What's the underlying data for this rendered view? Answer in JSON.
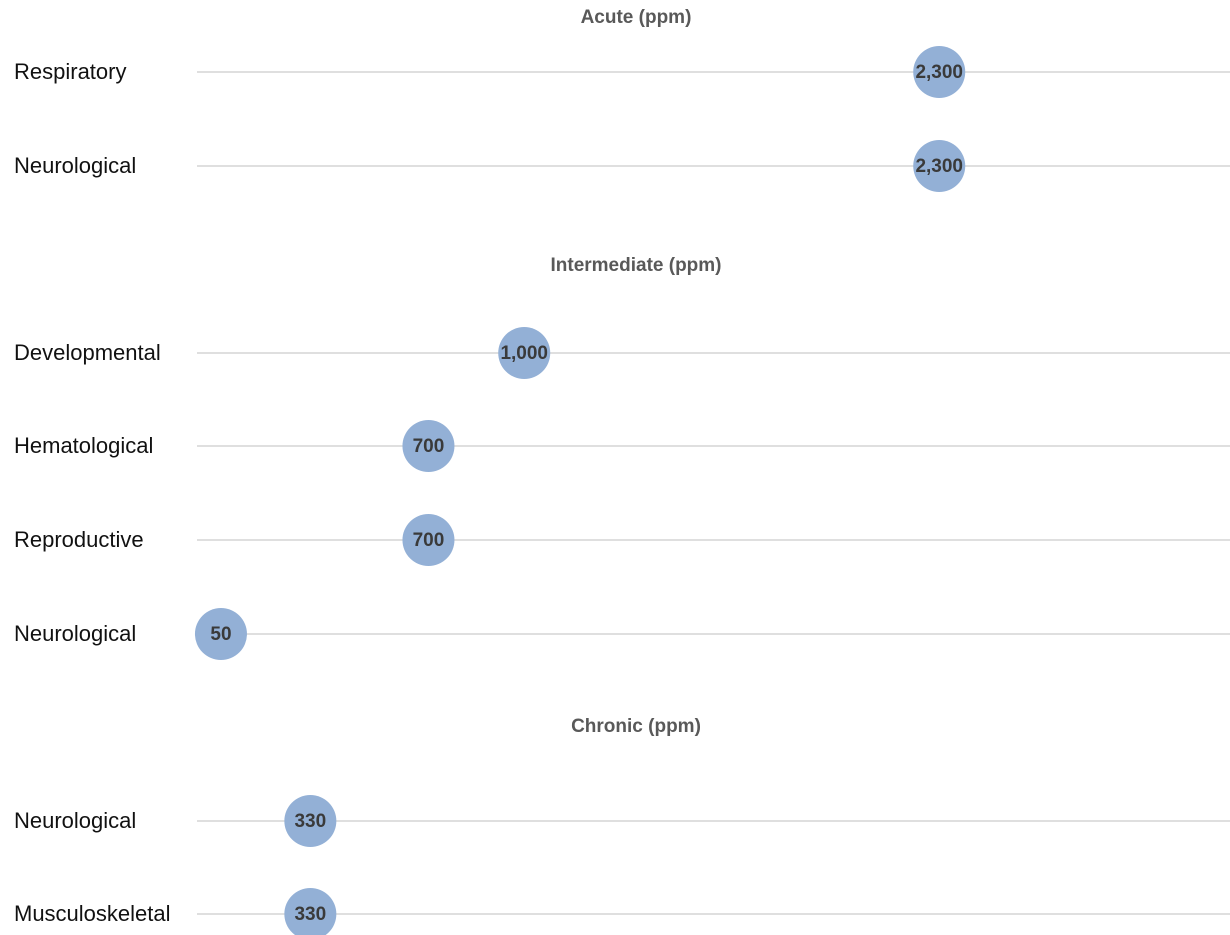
{
  "chart_data": {
    "type": "scatter",
    "x_min": 0,
    "x_max": 2600,
    "colors": {
      "marker": "#93b0d6",
      "grid": "#bfbfbf",
      "section_title": "#595959",
      "label": "#111111"
    },
    "sections": [
      {
        "title": "Acute (ppm)",
        "rows": [
          {
            "label": "Respiratory",
            "value": 2300,
            "value_label": "2,300"
          },
          {
            "label": "Neurological",
            "value": 2300,
            "value_label": "2,300"
          }
        ]
      },
      {
        "title": "Intermediate (ppm)",
        "rows": [
          {
            "label": "Developmental",
            "value": 1000,
            "value_label": "1,000"
          },
          {
            "label": "Hematological",
            "value": 700,
            "value_label": "700"
          },
          {
            "label": "Reproductive",
            "value": 700,
            "value_label": "700"
          },
          {
            "label": "Neurological",
            "value": 50,
            "value_label": "50"
          }
        ]
      },
      {
        "title": "Chronic (ppm)",
        "rows": [
          {
            "label": "Neurological",
            "value": 330,
            "value_label": "330"
          },
          {
            "label": "Musculoskeletal",
            "value": 330,
            "value_label": "330"
          }
        ]
      }
    ]
  }
}
